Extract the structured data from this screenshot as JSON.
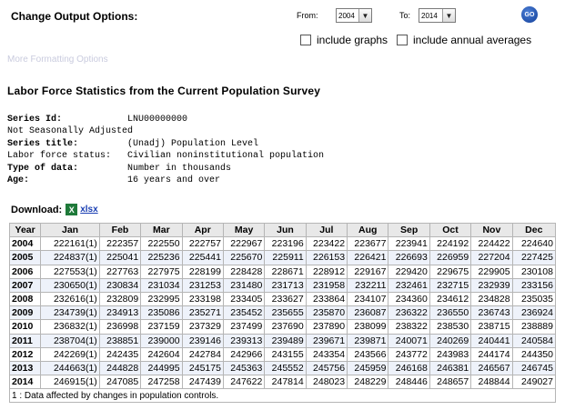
{
  "options": {
    "title": "Change Output Options:",
    "from_label": "From:",
    "from_value": "2004",
    "to_label": "To:",
    "to_value": "2014",
    "go_label": "GO",
    "include_graphs": "include graphs",
    "include_annual_averages": "include annual averages",
    "faded_text": "More Formatting Options"
  },
  "page_title": "Labor Force Statistics from the Current Population Survey",
  "series": {
    "id_label": "Series Id:",
    "id_value": "LNU00000000",
    "adjustment": "Not Seasonally Adjusted",
    "title_label": "Series title:",
    "title_value": "(Unadj) Population Level",
    "status_label": "Labor force status:",
    "status_value": "Civilian noninstitutional population",
    "type_label": "Type of data:",
    "type_value": "Number in thousands",
    "age_label": "Age:",
    "age_value": "16 years and over"
  },
  "download": {
    "label": "Download:",
    "link": "xlsx",
    "icon": "excel-icon"
  },
  "table": {
    "headers": [
      "Year",
      "Jan",
      "Feb",
      "Mar",
      "Apr",
      "May",
      "Jun",
      "Jul",
      "Aug",
      "Sep",
      "Oct",
      "Nov",
      "Dec"
    ],
    "rows": [
      [
        "2004",
        "222161(1)",
        "222357",
        "222550",
        "222757",
        "222967",
        "223196",
        "223422",
        "223677",
        "223941",
        "224192",
        "224422",
        "224640"
      ],
      [
        "2005",
        "224837(1)",
        "225041",
        "225236",
        "225441",
        "225670",
        "225911",
        "226153",
        "226421",
        "226693",
        "226959",
        "227204",
        "227425"
      ],
      [
        "2006",
        "227553(1)",
        "227763",
        "227975",
        "228199",
        "228428",
        "228671",
        "228912",
        "229167",
        "229420",
        "229675",
        "229905",
        "230108"
      ],
      [
        "2007",
        "230650(1)",
        "230834",
        "231034",
        "231253",
        "231480",
        "231713",
        "231958",
        "232211",
        "232461",
        "232715",
        "232939",
        "233156"
      ],
      [
        "2008",
        "232616(1)",
        "232809",
        "232995",
        "233198",
        "233405",
        "233627",
        "233864",
        "234107",
        "234360",
        "234612",
        "234828",
        "235035"
      ],
      [
        "2009",
        "234739(1)",
        "234913",
        "235086",
        "235271",
        "235452",
        "235655",
        "235870",
        "236087",
        "236322",
        "236550",
        "236743",
        "236924"
      ],
      [
        "2010",
        "236832(1)",
        "236998",
        "237159",
        "237329",
        "237499",
        "237690",
        "237890",
        "238099",
        "238322",
        "238530",
        "238715",
        "238889"
      ],
      [
        "2011",
        "238704(1)",
        "238851",
        "239000",
        "239146",
        "239313",
        "239489",
        "239671",
        "239871",
        "240071",
        "240269",
        "240441",
        "240584"
      ],
      [
        "2012",
        "242269(1)",
        "242435",
        "242604",
        "242784",
        "242966",
        "243155",
        "243354",
        "243566",
        "243772",
        "243983",
        "244174",
        "244350"
      ],
      [
        "2013",
        "244663(1)",
        "244828",
        "244995",
        "245175",
        "245363",
        "245552",
        "245756",
        "245959",
        "246168",
        "246381",
        "246567",
        "246745"
      ],
      [
        "2014",
        "246915(1)",
        "247085",
        "247258",
        "247439",
        "247622",
        "247814",
        "248023",
        "248229",
        "248446",
        "248657",
        "248844",
        "249027"
      ]
    ],
    "footnote": "1 : Data affected by changes in population controls."
  }
}
